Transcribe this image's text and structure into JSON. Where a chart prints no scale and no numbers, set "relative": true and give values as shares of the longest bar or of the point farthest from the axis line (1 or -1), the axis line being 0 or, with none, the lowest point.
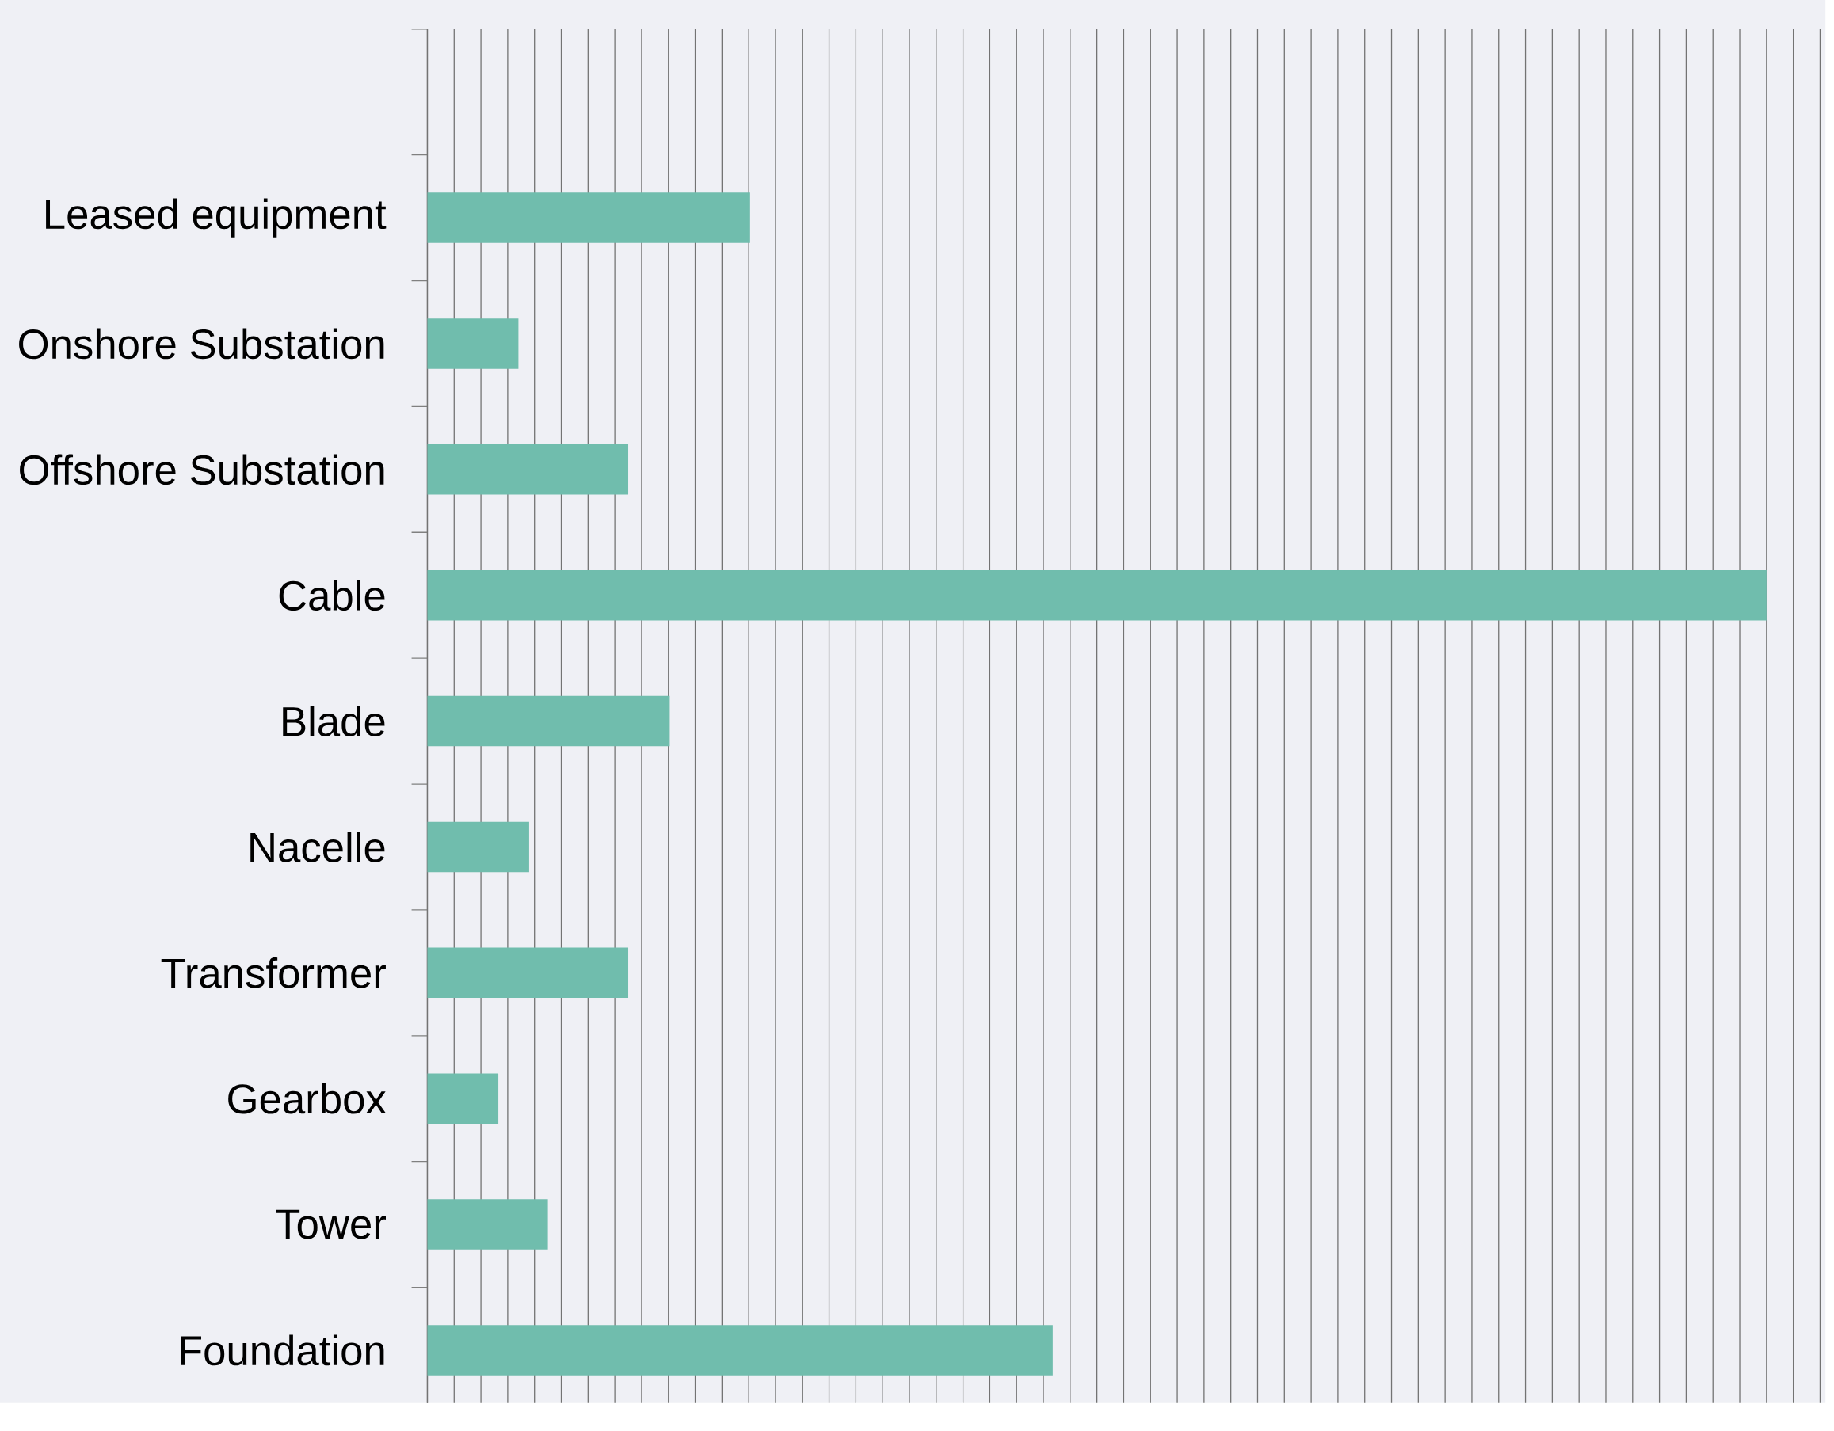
{
  "chart_data": {
    "type": "bar",
    "orientation": "horizontal",
    "relative": true,
    "grid": "x",
    "categories": [
      "Leased equipment",
      "Onshore Substation",
      "Offshore Substation",
      "Cable",
      "Blade",
      "Nacelle",
      "Transformer",
      "Gearbox",
      "Tower",
      "Foundation"
    ],
    "values": [
      0.241,
      0.068,
      0.15,
      1,
      0.181,
      0.076,
      0.15,
      0.053,
      0.09,
      0.467
    ],
    "color": "#70bdad"
  }
}
